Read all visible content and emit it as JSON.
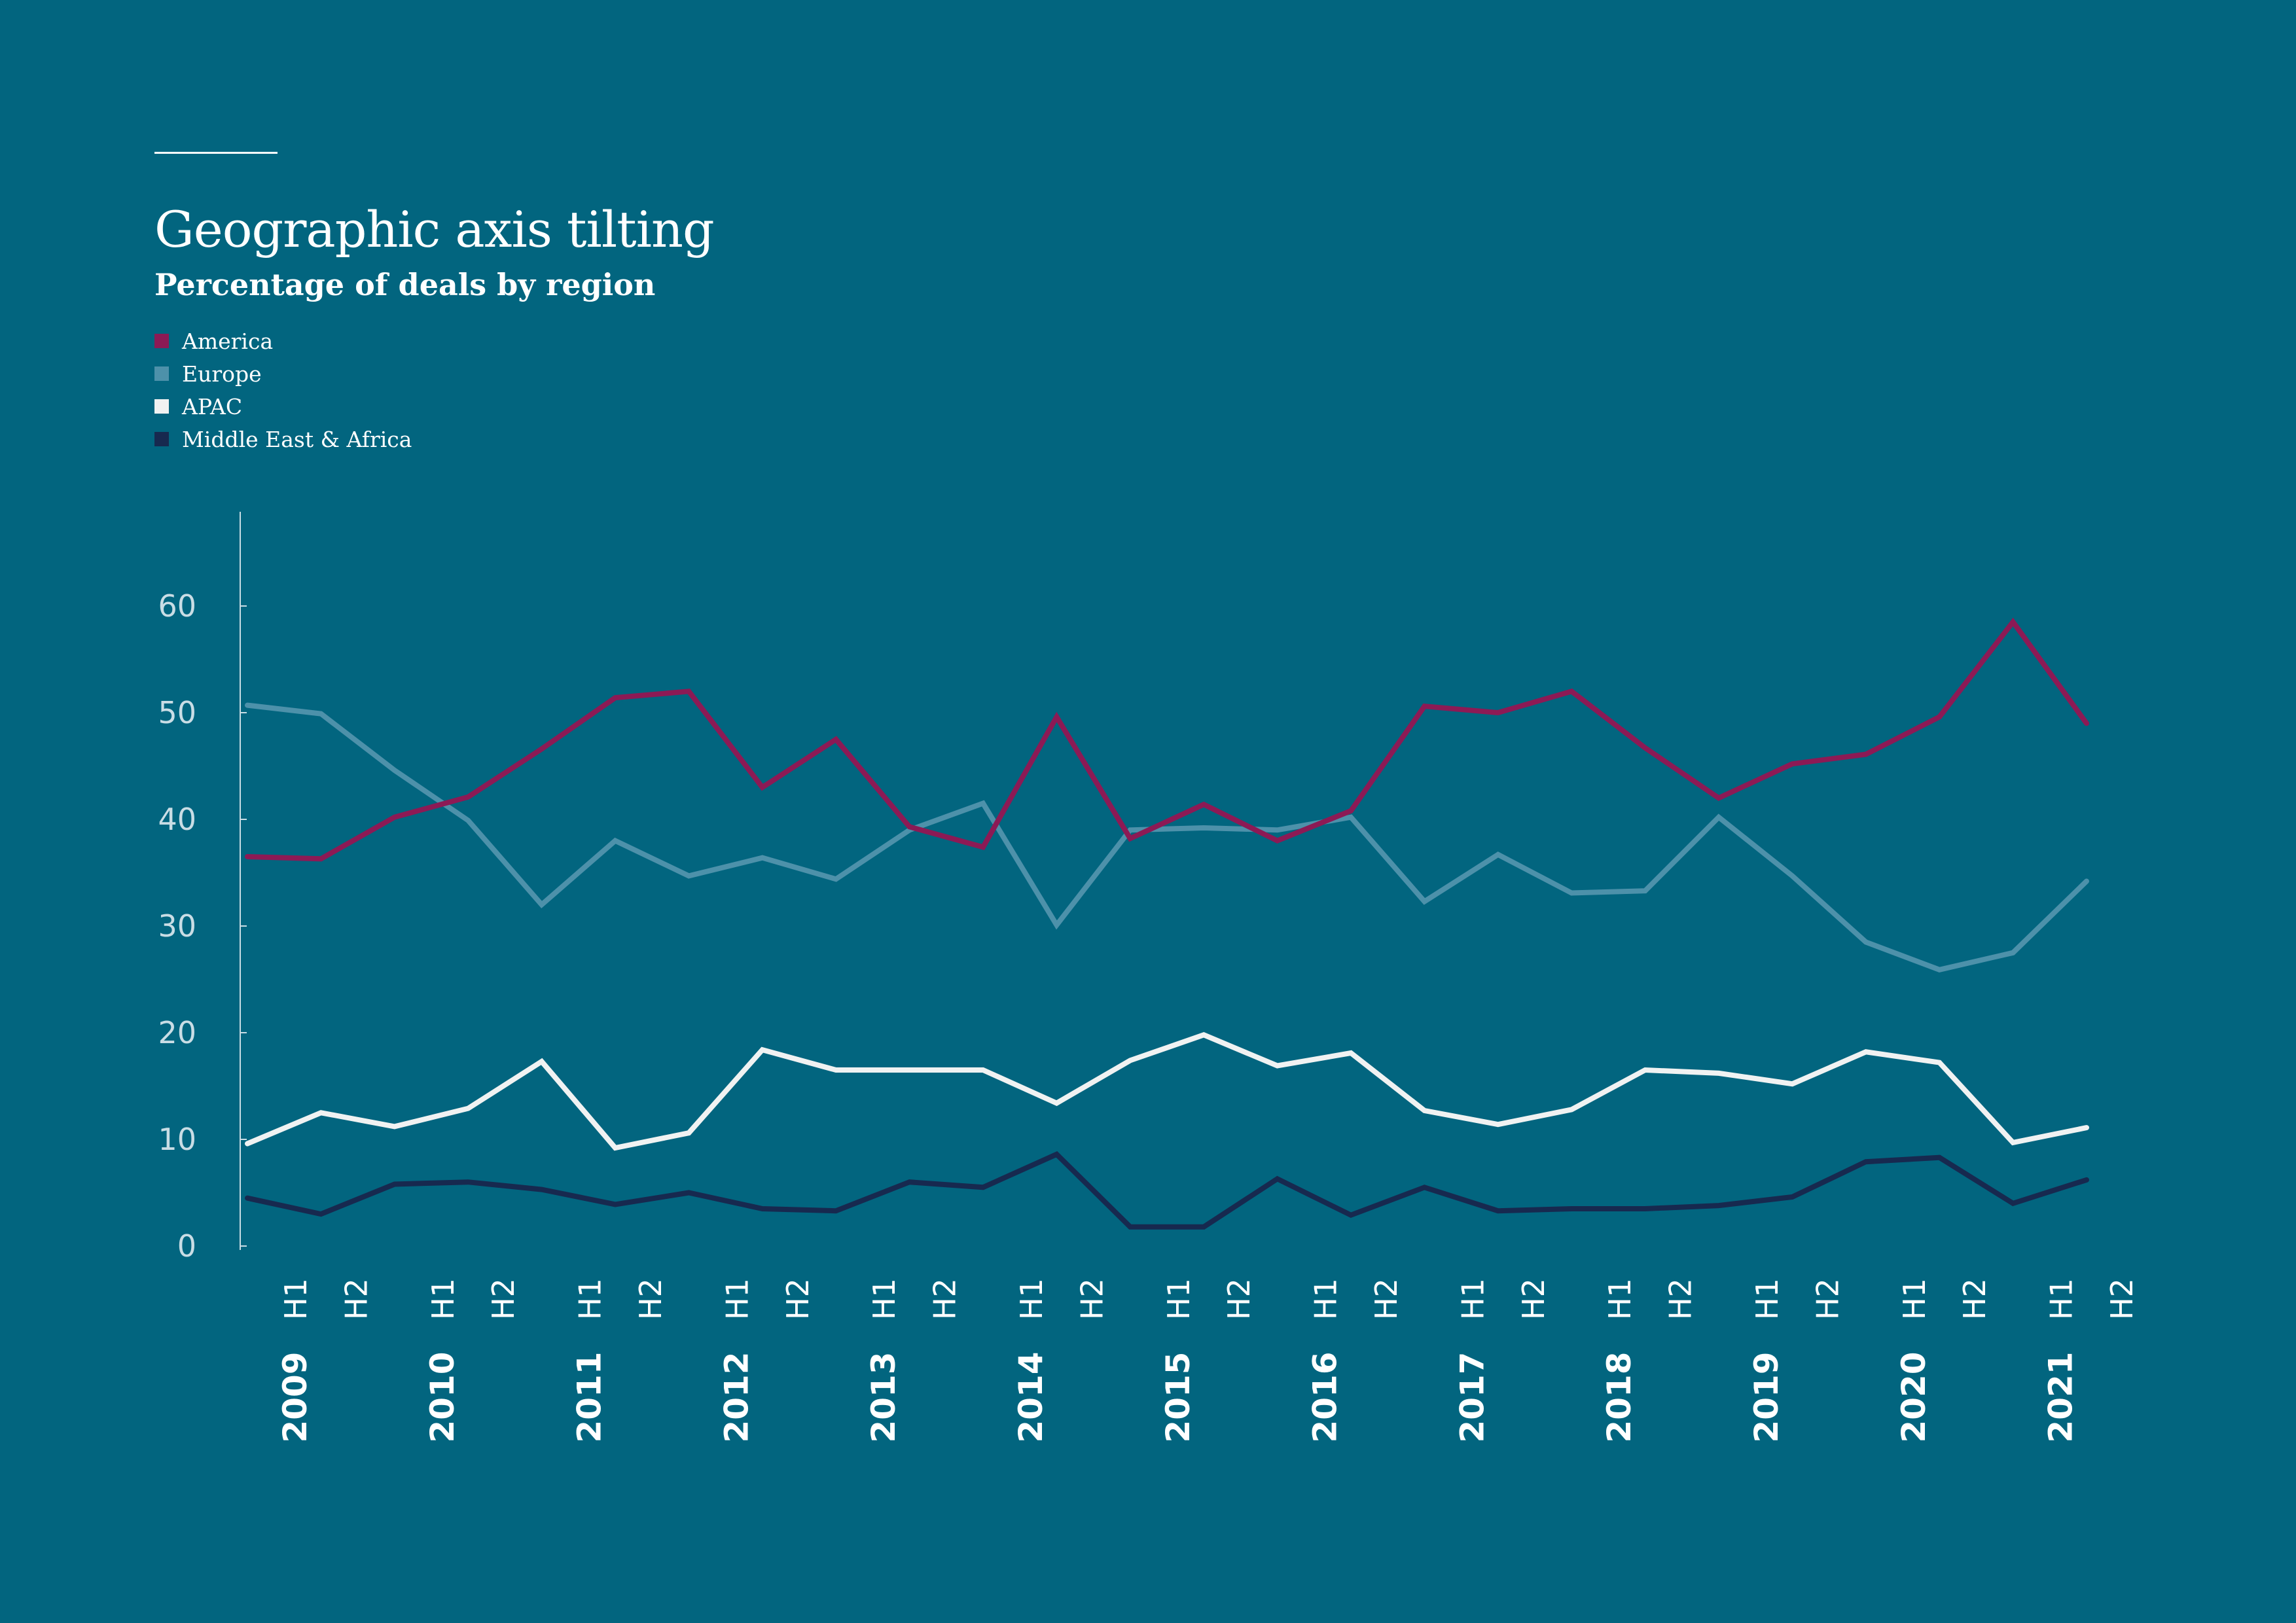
{
  "chart_data": {
    "type": "line",
    "title": "Geographic axis tilting",
    "subtitle": "Percentage of deals by region",
    "xlabel": "",
    "ylabel": "",
    "ylim": [
      0,
      70
    ],
    "yticks": [
      0,
      10,
      20,
      30,
      40,
      50,
      60
    ],
    "grid": false,
    "legend_position": "top-left",
    "background_color": "#02657f",
    "axis_color": "#c9dde5",
    "years": [
      "2009",
      "2010",
      "2011",
      "2012",
      "2013",
      "2014",
      "2015",
      "2016",
      "2017",
      "2018",
      "2019",
      "2020",
      "2021"
    ],
    "halves": [
      "H1",
      "H2"
    ],
    "x": [
      "2009 H1",
      "2009 H2",
      "2010 H1",
      "2010 H2",
      "2011 H1",
      "2011 H2",
      "2012 H1",
      "2012 H2",
      "2013 H1",
      "2013 H2",
      "2014 H1",
      "2014 H2",
      "2015 H1",
      "2015 H2",
      "2016 H1",
      "2016 H2",
      "2017 H1",
      "2017 H2",
      "2018 H1",
      "2018 H2",
      "2019 H1",
      "2019 H2",
      "2020 H1",
      "2020 H2",
      "2021 H1",
      "2021 H2"
    ],
    "series": [
      {
        "name": "America",
        "color": "#8c1a55",
        "values": [
          36.5,
          36.3,
          40.2,
          42.1,
          46.6,
          51.4,
          52.0,
          43.0,
          47.5,
          39.3,
          37.4,
          49.6,
          38.2,
          41.4,
          38.0,
          40.8,
          50.6,
          50.0,
          52.0,
          46.7,
          42.0,
          45.2,
          46.1,
          49.6,
          58.5,
          49.0
        ]
      },
      {
        "name": "Europe",
        "color": "#4d91aa",
        "values": [
          50.7,
          49.9,
          44.6,
          39.9,
          32.0,
          38.0,
          34.7,
          36.4,
          34.4,
          39.0,
          41.5,
          30.1,
          39.0,
          39.2,
          39.0,
          40.2,
          32.3,
          36.7,
          33.1,
          33.3,
          40.2,
          34.7,
          28.5,
          25.9,
          27.5,
          34.2
        ]
      },
      {
        "name": "APAC",
        "color": "#f0f2f2",
        "values": [
          9.6,
          12.5,
          11.2,
          12.9,
          17.3,
          9.2,
          10.6,
          18.4,
          16.5,
          16.5,
          16.5,
          13.4,
          17.4,
          19.8,
          16.9,
          18.1,
          12.7,
          11.4,
          12.8,
          16.5,
          16.2,
          15.2,
          18.2,
          17.2,
          9.7,
          11.1
        ]
      },
      {
        "name": "Middle East & Africa",
        "color": "#17294f",
        "values": [
          4.5,
          3.0,
          5.8,
          6.0,
          5.3,
          3.9,
          5.0,
          3.5,
          3.3,
          6.0,
          5.5,
          8.6,
          1.8,
          1.8,
          6.3,
          2.9,
          5.5,
          3.3,
          3.5,
          3.5,
          3.8,
          4.6,
          7.9,
          8.3,
          4.0,
          6.2
        ]
      }
    ]
  }
}
